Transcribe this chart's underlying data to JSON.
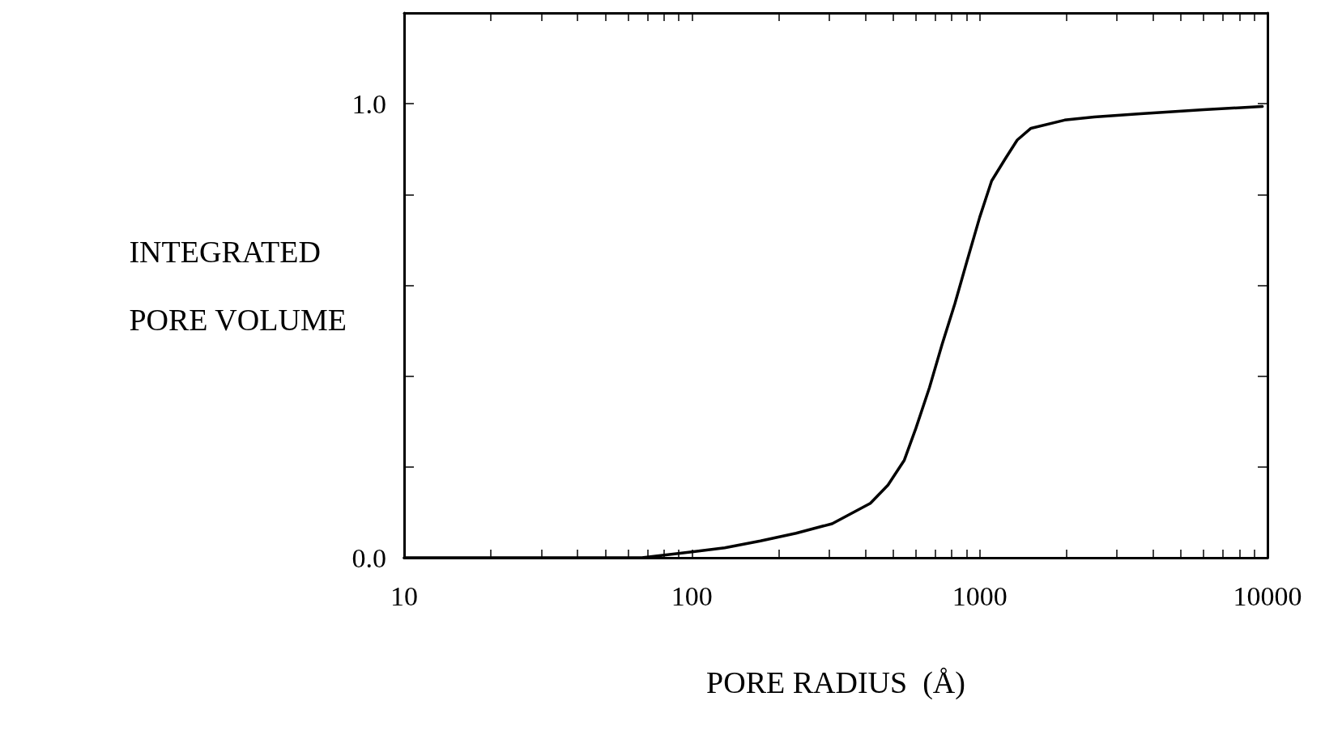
{
  "chart_data": {
    "type": "line",
    "xlabel": "PORE RADIUS  (Å)",
    "ylabel": "INTEGRATED\nPORE VOLUME",
    "log": "x",
    "grid": false,
    "marker": "none",
    "line_style": "solid",
    "x": [
      10,
      30,
      67,
      100,
      130,
      173,
      230,
      307,
      417,
      480,
      547,
      600,
      669,
      740,
      820,
      900,
      1000,
      1100,
      1230,
      1350,
      1507,
      1973,
      2500,
      3624,
      6000,
      9600
    ],
    "series": [
      {
        "color": "#000000",
        "values": [
          0,
          0,
          0,
          0.013,
          0.022,
          0.037,
          0.054,
          0.075,
          0.12,
          0.16,
          0.215,
          0.285,
          0.375,
          0.47,
          0.56,
          0.65,
          0.75,
          0.83,
          0.88,
          0.92,
          0.946,
          0.964,
          0.971,
          0.978,
          0.987,
          0.994
        ]
      }
    ],
    "xlim": [
      10,
      10000
    ],
    "xticks": [
      10,
      {
        "value": 20,
        "label": null
      },
      {
        "value": 30,
        "label": null
      },
      {
        "value": 40,
        "label": null
      },
      {
        "value": 50,
        "label": null
      },
      {
        "value": 60,
        "label": null
      },
      {
        "value": 70,
        "label": null
      },
      {
        "value": 80,
        "label": null
      },
      {
        "value": 90,
        "label": null
      },
      100,
      {
        "value": 200,
        "label": null
      },
      {
        "value": 300,
        "label": null
      },
      {
        "value": 400,
        "label": null
      },
      {
        "value": 500,
        "label": null
      },
      {
        "value": 600,
        "label": null
      },
      {
        "value": 700,
        "label": null
      },
      {
        "value": 800,
        "label": null
      },
      {
        "value": 900,
        "label": null
      },
      1000,
      {
        "value": 2000,
        "label": null
      },
      {
        "value": 3000,
        "label": null
      },
      {
        "value": 4000,
        "label": null
      },
      {
        "value": 5000,
        "label": null
      },
      {
        "value": 6000,
        "label": null
      },
      {
        "value": 7000,
        "label": null
      },
      {
        "value": 8000,
        "label": null
      },
      {
        "value": 9000,
        "label": null
      },
      10000
    ],
    "ylim": [
      0,
      1.2
    ],
    "yticks": [
      {
        "value": 0,
        "label": "0.0"
      },
      {
        "value": 0.2,
        "label": null
      },
      {
        "value": 0.4,
        "label": null
      },
      {
        "value": 0.6,
        "label": null
      },
      {
        "value": 0.8,
        "label": null
      },
      {
        "value": 1,
        "label": "1.0"
      }
    ]
  }
}
